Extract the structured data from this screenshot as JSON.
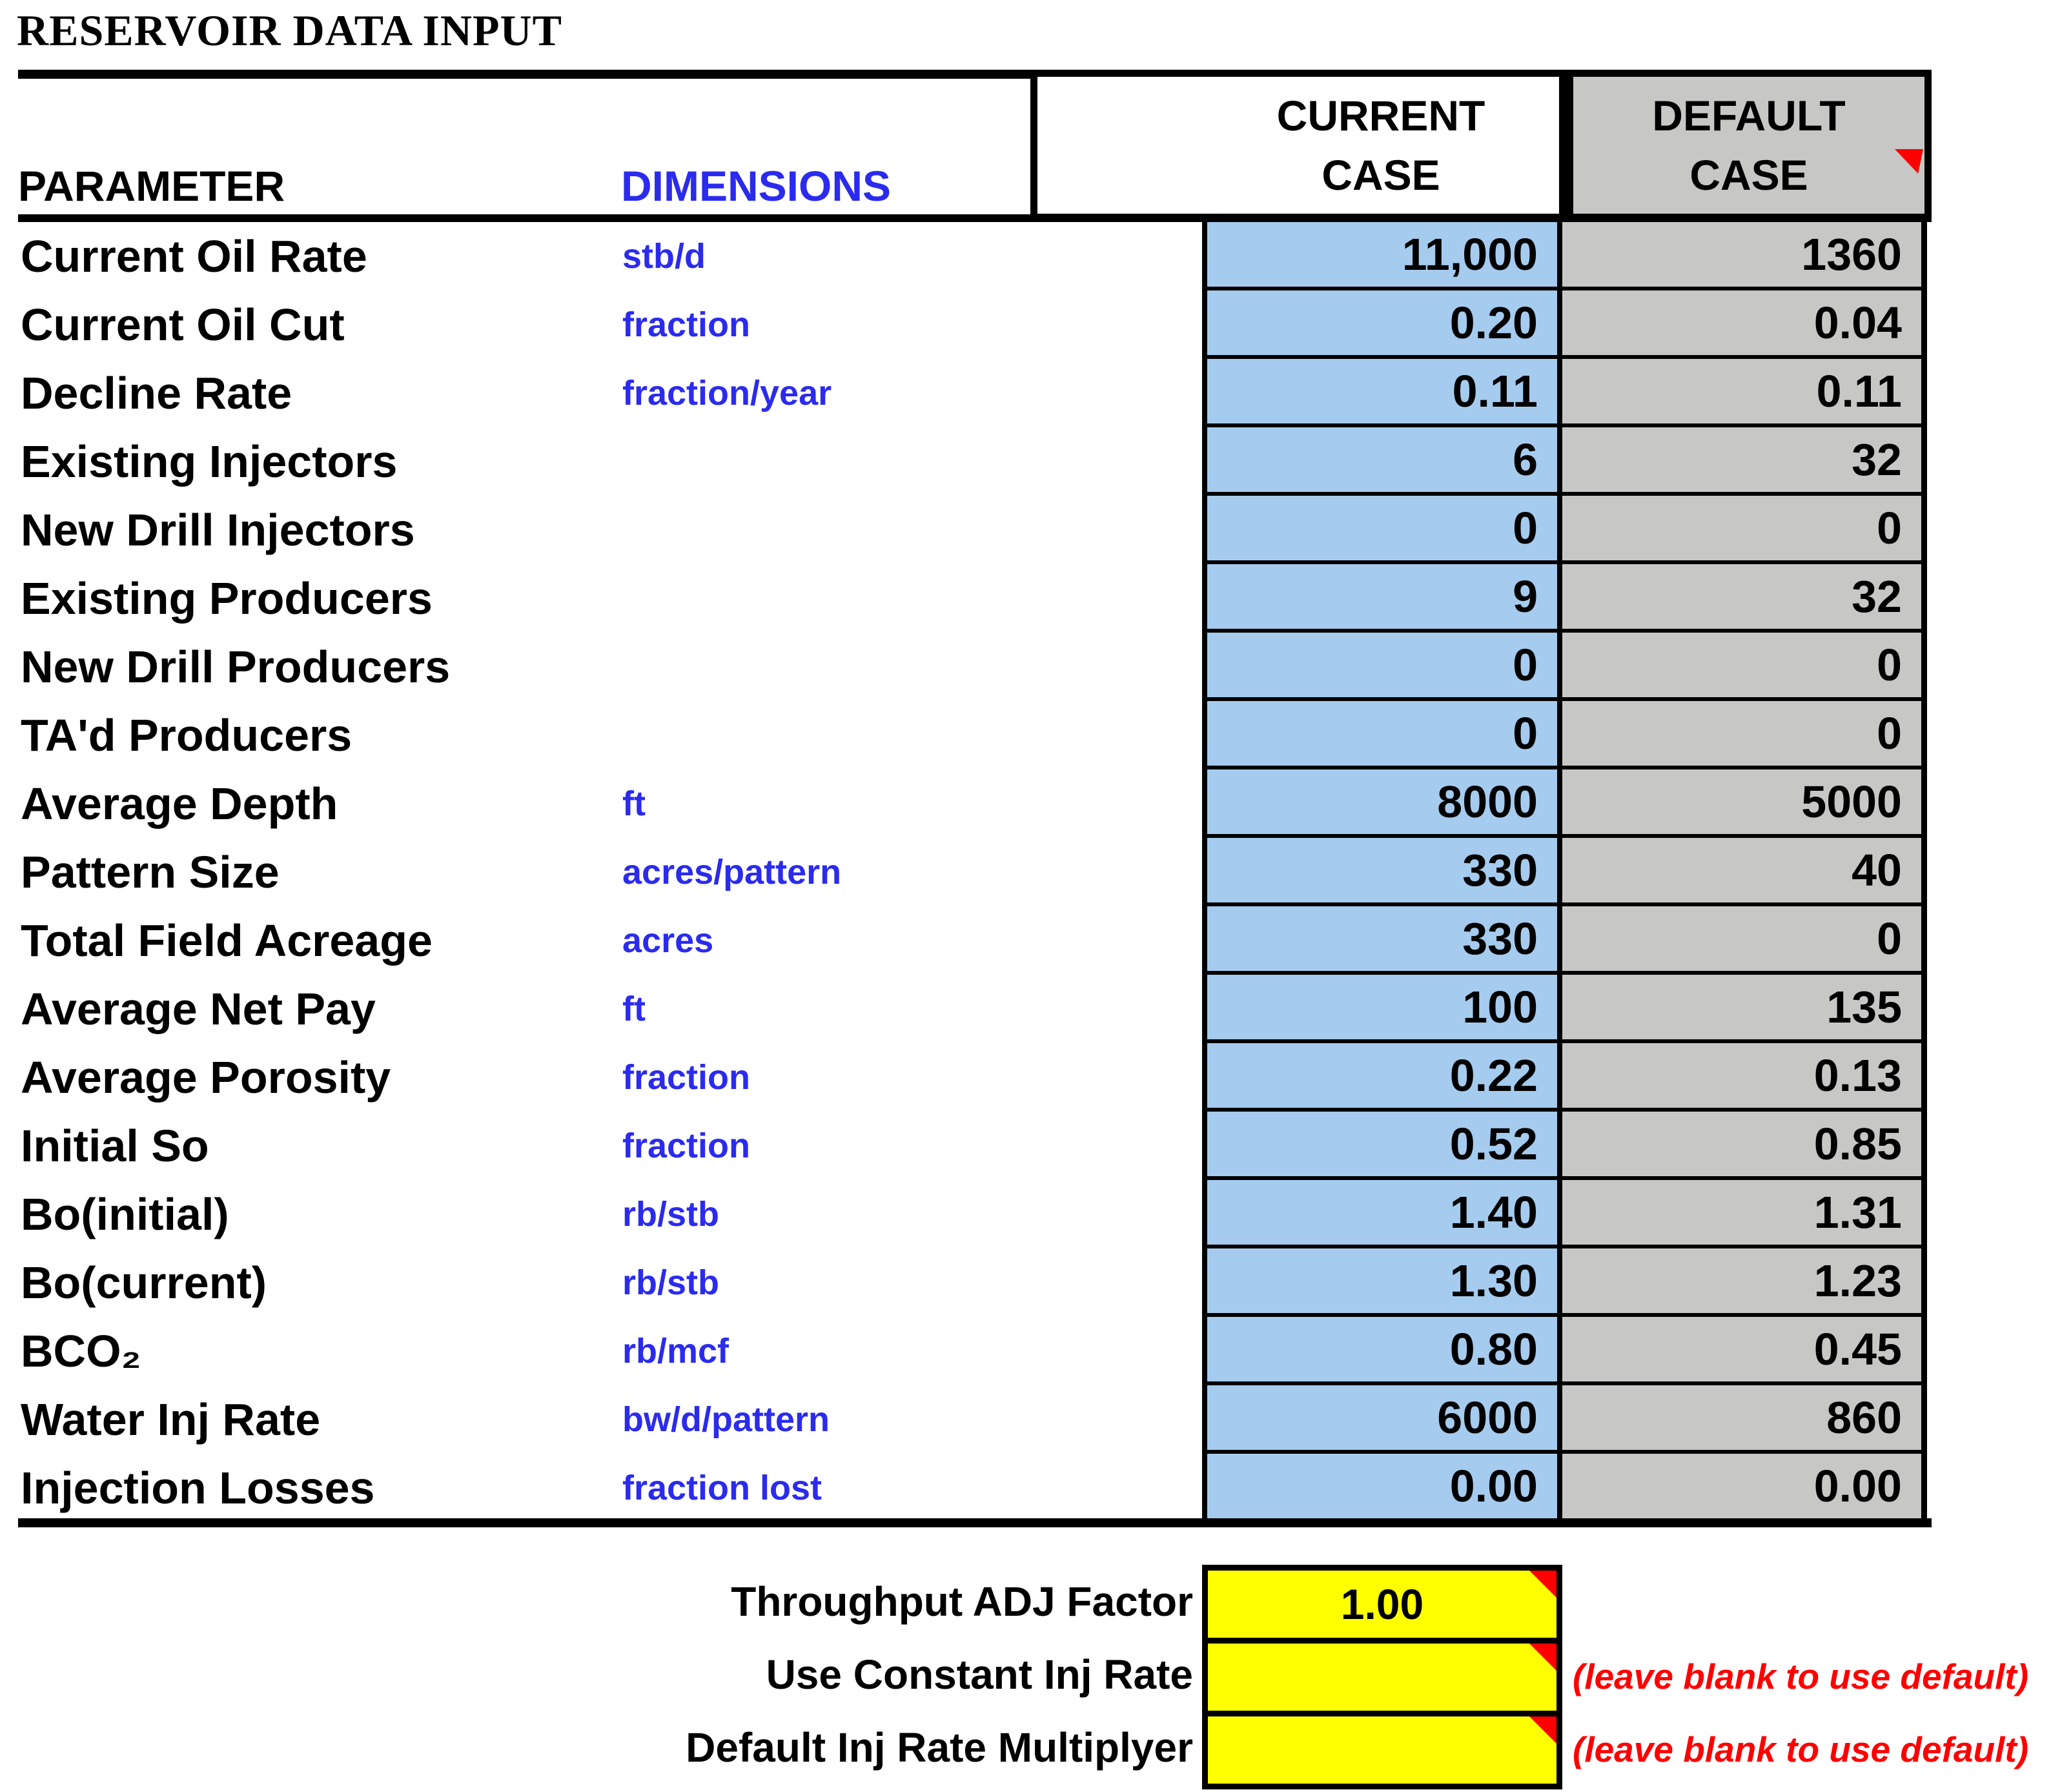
{
  "title": "RESERVOIR DATA INPUT",
  "table": {
    "col_headers": {
      "parameter": "PARAMETER",
      "dimensions": "DIMENSIONS",
      "current_case_line1": "CURRENT",
      "current_case_line2": "CASE",
      "default_case_line1": "DEFAULT",
      "default_case_line2": "CASE"
    },
    "rows": [
      {
        "parameter": "Current Oil Rate",
        "dimension": "stb/d",
        "current": "11,000",
        "default": "1360"
      },
      {
        "parameter": "Current Oil Cut",
        "dimension": "fraction",
        "current": "0.20",
        "default": "0.04"
      },
      {
        "parameter": "Decline Rate",
        "dimension": "fraction/year",
        "current": "0.11",
        "default": "0.11"
      },
      {
        "parameter": "Existing Injectors",
        "dimension": "",
        "current": "6",
        "default": "32"
      },
      {
        "parameter": "New Drill Injectors",
        "dimension": "",
        "current": "0",
        "default": "0"
      },
      {
        "parameter": "Existing Producers",
        "dimension": "",
        "current": "9",
        "default": "32"
      },
      {
        "parameter": "New Drill Producers",
        "dimension": "",
        "current": "0",
        "default": "0"
      },
      {
        "parameter": "TA'd Producers",
        "dimension": "",
        "current": "0",
        "default": "0"
      },
      {
        "parameter": "Average Depth",
        "dimension": "ft",
        "current": "8000",
        "default": "5000"
      },
      {
        "parameter": "Pattern Size",
        "dimension": "acres/pattern",
        "current": "330",
        "default": "40"
      },
      {
        "parameter": "Total Field Acreage",
        "dimension": "acres",
        "current": "330",
        "default": "0"
      },
      {
        "parameter": "Average Net Pay",
        "dimension": "ft",
        "current": "100",
        "default": "135"
      },
      {
        "parameter": "Average Porosity",
        "dimension": "fraction",
        "current": "0.22",
        "default": "0.13"
      },
      {
        "parameter": "Initial So",
        "dimension": "fraction",
        "current": "0.52",
        "default": "0.85"
      },
      {
        "parameter": "Bo(initial)",
        "dimension": "rb/stb",
        "current": "1.40",
        "default": "1.31"
      },
      {
        "parameter": "Bo(current)",
        "dimension": "rb/stb",
        "current": "1.30",
        "default": "1.23"
      },
      {
        "parameter": "BCO₂",
        "dimension": "rb/mcf",
        "current": "0.80",
        "default": "0.45"
      },
      {
        "parameter": "Water Inj Rate",
        "dimension": "bw/d/pattern",
        "current": "6000",
        "default": "860"
      },
      {
        "parameter": "Injection Losses",
        "dimension": "fraction lost",
        "current": "0.00",
        "default": "0.00"
      }
    ]
  },
  "footer": {
    "rows": [
      {
        "label": "Throughput ADJ Factor",
        "value": "1.00",
        "note": ""
      },
      {
        "label": "Use Constant Inj Rate",
        "value": "",
        "note": "(leave blank to use default)"
      },
      {
        "label": "Default Inj Rate Multiplyer",
        "value": "",
        "note": "(leave blank to use default)"
      }
    ]
  },
  "icons": {
    "comment_marker": "red-corner-triangle"
  },
  "colors": {
    "current_case_cell": "#a5cbee",
    "default_case_cell": "#c7c8c5",
    "input_cell": "#ffff00",
    "dimension_text": "#2b2bef",
    "note_text": "#ff0000",
    "comment_marker": "#ff0000",
    "border": "#000000"
  }
}
